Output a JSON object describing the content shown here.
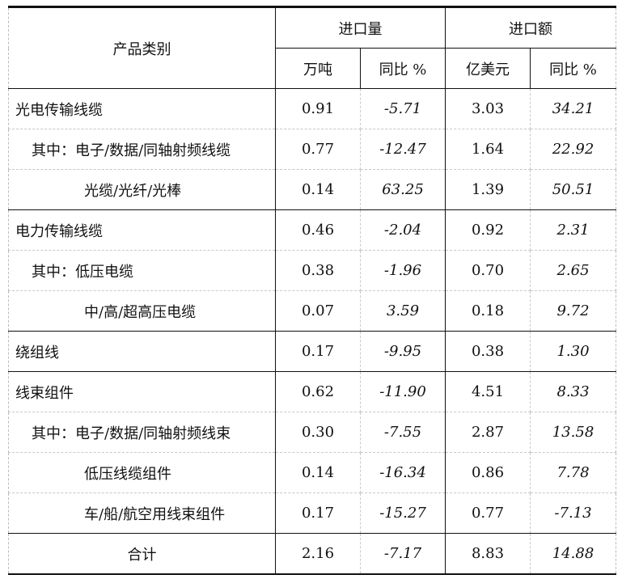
{
  "header": {
    "category": "产品类别",
    "volume_group": "进口量",
    "value_group": "进口额",
    "volume_unit": "万吨",
    "volume_yoy": "同比 %",
    "value_unit": "亿美元",
    "value_yoy": "同比 %"
  },
  "rows": [
    {
      "category": "光电传输线缆",
      "level": 0,
      "group_start": true,
      "volume": "0.91",
      "volume_yoy": "-5.71",
      "value": "3.03",
      "value_yoy": "34.21"
    },
    {
      "category": "其中：电子/数据/同轴射频线缆",
      "level": 1,
      "volume": "0.77",
      "volume_yoy": "-12.47",
      "value": "1.64",
      "value_yoy": "22.92"
    },
    {
      "category": "光缆/光纤/光棒",
      "level": 2,
      "volume": "0.14",
      "volume_yoy": "63.25",
      "value": "1.39",
      "value_yoy": "50.51"
    },
    {
      "category": "电力传输线缆",
      "level": 0,
      "group_start": true,
      "volume": "0.46",
      "volume_yoy": "-2.04",
      "value": "0.92",
      "value_yoy": "2.31"
    },
    {
      "category": "其中：低压电缆",
      "level": 1,
      "volume": "0.38",
      "volume_yoy": "-1.96",
      "value": "0.70",
      "value_yoy": "2.65"
    },
    {
      "category": "中/高/超高压电缆",
      "level": 2,
      "volume": "0.07",
      "volume_yoy": "3.59",
      "value": "0.18",
      "value_yoy": "9.72"
    },
    {
      "category": "绕组线",
      "level": 0,
      "group_start": true,
      "volume": "0.17",
      "volume_yoy": "-9.95",
      "value": "0.38",
      "value_yoy": "1.30"
    },
    {
      "category": "线束组件",
      "level": 0,
      "group_start": true,
      "volume": "0.62",
      "volume_yoy": "-11.90",
      "value": "4.51",
      "value_yoy": "8.33"
    },
    {
      "category": "其中：电子/数据/同轴射频线束",
      "level": 1,
      "volume": "0.30",
      "volume_yoy": "-7.55",
      "value": "2.87",
      "value_yoy": "13.58"
    },
    {
      "category": "低压线缆组件",
      "level": 2,
      "volume": "0.14",
      "volume_yoy": "-16.34",
      "value": "0.86",
      "value_yoy": "7.78"
    },
    {
      "category": "车/船/航空用线束组件",
      "level": 2,
      "volume": "0.17",
      "volume_yoy": "-15.27",
      "value": "0.77",
      "value_yoy": "-7.13"
    }
  ],
  "total": {
    "category": "合计",
    "volume": "2.16",
    "volume_yoy": "-7.17",
    "value": "8.83",
    "value_yoy": "14.88"
  }
}
